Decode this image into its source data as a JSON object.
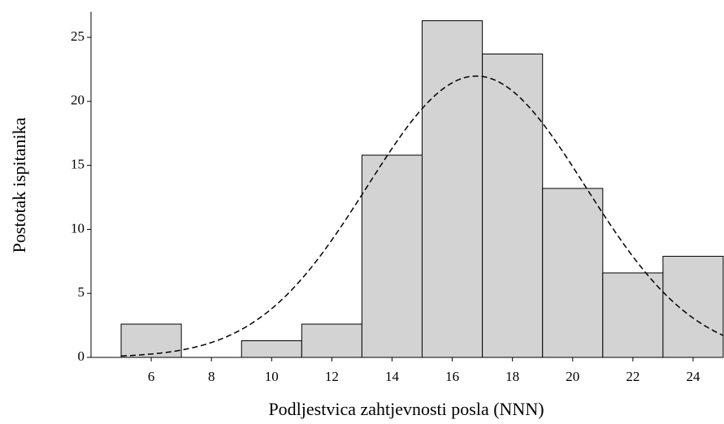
{
  "chart_data": {
    "type": "histogram",
    "xlabel": "Podljestvica zahtjevnosti posla (NNN)",
    "ylabel": "Postotak ispitanika",
    "bins": [
      5,
      7,
      9,
      11,
      13,
      15,
      17,
      19,
      21,
      23,
      25
    ],
    "values": [
      2.6,
      0,
      1.3,
      2.6,
      15.8,
      26.3,
      23.7,
      13.2,
      6.6,
      7.9
    ],
    "color": "#d3d3d3",
    "xlim": [
      4,
      25
    ],
    "xticks": [
      6,
      8,
      10,
      12,
      14,
      16,
      18,
      20,
      22,
      24
    ],
    "ylim": [
      0,
      27
    ],
    "yticks": [
      0,
      5,
      10,
      15,
      20,
      25
    ],
    "normal_fit": {
      "mean": 16.8,
      "sd": 3.63
    }
  }
}
